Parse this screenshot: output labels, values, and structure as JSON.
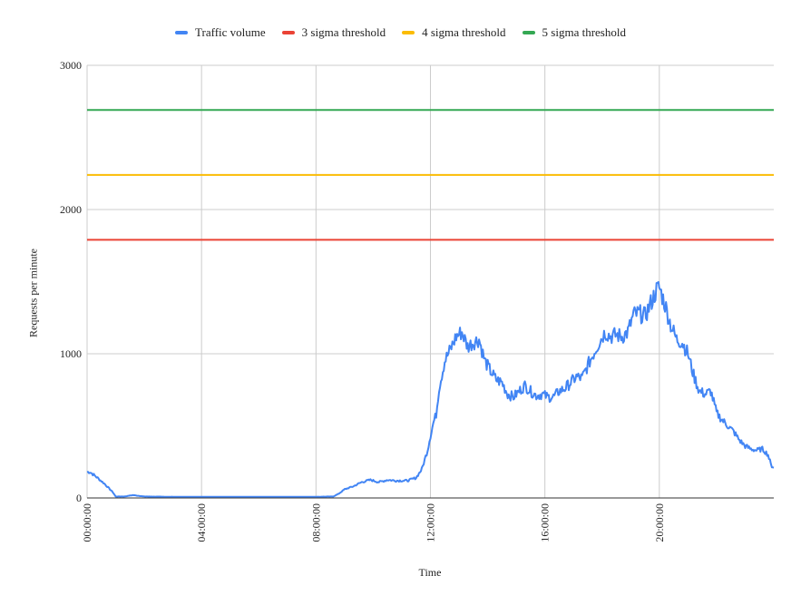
{
  "chart_data": {
    "type": "line",
    "title": "",
    "xlabel": "Time",
    "ylabel": "Requests per minute",
    "x_ticks": [
      "00:00:00",
      "04:00:00",
      "08:00:00",
      "12:00:00",
      "16:00:00",
      "20:00:00"
    ],
    "x_tick_hours": [
      0,
      4,
      8,
      12,
      16,
      20
    ],
    "x_range_hours": [
      0,
      24
    ],
    "y_ticks": [
      0,
      1000,
      2000,
      3000
    ],
    "ylim": [
      0,
      3000
    ],
    "grid": true,
    "legend_position": "top",
    "series": [
      {
        "name": "Traffic volume",
        "color": "#4285F4",
        "x_hours": [
          0,
          0.1,
          0.3,
          0.6,
          0.9,
          1.0,
          1.3,
          1.6,
          2,
          3,
          4,
          5,
          6,
          7,
          8,
          8.6,
          8.8,
          9.0,
          9.3,
          9.6,
          9.9,
          10.2,
          10.5,
          10.8,
          11.2,
          11.5,
          11.7,
          11.9,
          12.0,
          12.1,
          12.2,
          12.3,
          12.5,
          12.7,
          12.9,
          13.1,
          13.3,
          13.5,
          13.7,
          13.9,
          14.1,
          14.3,
          14.5,
          14.7,
          14.9,
          15.1,
          15.3,
          15.5,
          15.7,
          15.9,
          16.1,
          16.3,
          16.5,
          16.7,
          16.9,
          17.1,
          17.3,
          17.5,
          17.7,
          17.9,
          18.1,
          18.3,
          18.5,
          18.7,
          18.9,
          19.1,
          19.3,
          19.5,
          19.7,
          19.9,
          20.0,
          20.2,
          20.4,
          20.6,
          20.8,
          21.0,
          21.2,
          21.4,
          21.6,
          21.8,
          22.0,
          22.2,
          22.4,
          22.6,
          22.8,
          23.0,
          23.2,
          23.4,
          23.6,
          23.8,
          23.9,
          24.0
        ],
        "values": [
          180,
          180,
          150,
          100,
          40,
          10,
          10,
          20,
          10,
          8,
          8,
          8,
          8,
          8,
          8,
          10,
          30,
          60,
          80,
          110,
          125,
          110,
          125,
          120,
          120,
          140,
          200,
          330,
          430,
          520,
          580,
          760,
          950,
          1030,
          1120,
          1150,
          1050,
          1080,
          1100,
          950,
          880,
          820,
          800,
          720,
          700,
          740,
          780,
          740,
          710,
          720,
          700,
          700,
          740,
          760,
          800,
          840,
          830,
          920,
          1000,
          1080,
          1150,
          1120,
          1130,
          1120,
          1150,
          1270,
          1280,
          1260,
          1350,
          1440,
          1460,
          1340,
          1200,
          1100,
          1080,
          1000,
          850,
          740,
          720,
          740,
          590,
          540,
          500,
          460,
          400,
          360,
          340,
          330,
          340,
          300,
          230,
          210
        ]
      },
      {
        "name": "3 sigma threshold",
        "color": "#EA4335",
        "constant": 1790
      },
      {
        "name": "4 sigma threshold",
        "color": "#FBBC04",
        "constant": 2240
      },
      {
        "name": "5 sigma threshold",
        "color": "#34A853",
        "constant": 2690
      }
    ]
  }
}
